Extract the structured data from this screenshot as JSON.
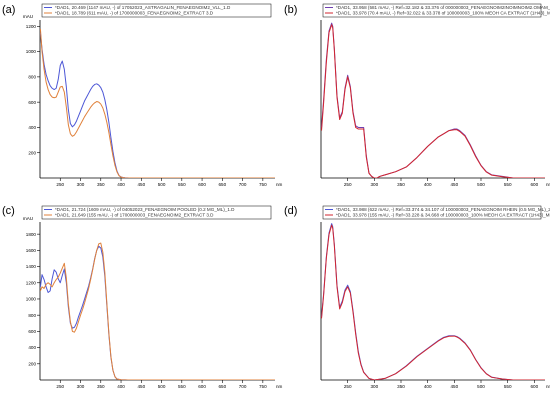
{
  "panel_labels": [
    "(a)",
    "(b)",
    "(c)",
    "(d)"
  ],
  "colors": {
    "blue": "#4d57d6",
    "orange": "#e0813b",
    "red": "#d2262f",
    "purple": "#6f3fb0"
  },
  "chart_data": [
    {
      "type": "line",
      "panel": "(a)",
      "ylabel": "mAU",
      "xlabel": "nm",
      "xlim": [
        200,
        780
      ],
      "ylim": [
        0,
        1250
      ],
      "xticks": [
        250,
        300,
        350,
        400,
        450,
        500,
        550,
        600,
        650,
        700,
        750
      ],
      "yticks": [
        200,
        400,
        600,
        800,
        1000,
        1200
      ],
      "legend": [
        "*DAD1, 20.469 (1147 mAU, -) of 17052023_ASTRAGALIN_FENAEGNOIM2_VLL_1.D",
        "*DAD1, 18.789 (611 mAU, -) of 1700000003_FENAEGNOIM2_EXTRACT 3.D"
      ],
      "series": [
        {
          "color": "blue",
          "x": [
            201,
            205,
            210,
            215,
            220,
            225,
            230,
            235,
            240,
            245,
            250,
            255,
            260,
            265,
            270,
            275,
            280,
            285,
            290,
            295,
            300,
            305,
            310,
            315,
            320,
            325,
            330,
            335,
            340,
            345,
            350,
            355,
            360,
            365,
            370,
            375,
            380,
            385,
            390,
            395,
            400,
            405,
            410,
            415,
            420,
            430,
            450,
            500,
            550,
            600,
            650,
            700,
            750,
            780
          ],
          "y": [
            1150,
            1020,
            900,
            820,
            770,
            730,
            710,
            700,
            710,
            780,
            890,
            925,
            860,
            720,
            540,
            430,
            405,
            420,
            450,
            490,
            530,
            570,
            610,
            640,
            670,
            700,
            725,
            740,
            745,
            735,
            715,
            680,
            620,
            540,
            440,
            320,
            210,
            120,
            55,
            20,
            8,
            4,
            2,
            1,
            0,
            0,
            0,
            0,
            0,
            0,
            0,
            0,
            0,
            0
          ]
        },
        {
          "color": "orange",
          "x": [
            201,
            205,
            210,
            215,
            220,
            225,
            230,
            235,
            240,
            245,
            250,
            255,
            260,
            265,
            270,
            275,
            280,
            285,
            290,
            295,
            300,
            305,
            310,
            315,
            320,
            325,
            330,
            335,
            340,
            345,
            350,
            355,
            360,
            365,
            370,
            375,
            380,
            385,
            390,
            395,
            400,
            405,
            410,
            415,
            420,
            430,
            450,
            500,
            550,
            600,
            650,
            700,
            750,
            780
          ],
          "y": [
            1180,
            1000,
            860,
            760,
            700,
            660,
            640,
            635,
            640,
            680,
            720,
            725,
            680,
            560,
            420,
            350,
            330,
            340,
            365,
            395,
            425,
            455,
            485,
            510,
            535,
            560,
            580,
            595,
            605,
            600,
            585,
            555,
            505,
            440,
            360,
            265,
            175,
            100,
            48,
            18,
            7,
            3,
            1,
            0,
            0,
            0,
            0,
            0,
            0,
            0,
            0,
            0,
            0,
            0
          ]
        }
      ]
    },
    {
      "type": "line",
      "panel": "(b)",
      "xlabel": "nm",
      "xlim": [
        200,
        620
      ],
      "ylim": [
        0,
        1
      ],
      "xticks": [
        250,
        300,
        350,
        400,
        450,
        500,
        550,
        600
      ],
      "yticks": [],
      "legend": [
        "*DAD1, 33.958 (581 mAU, -) Ref=32.182 & 33.376 of 000000003_FENAEGNOIM2INOIMNOIM2.OMAM_ML",
        "*DAD1, 33.978 (70.4 mAU, -) Ref=32.022 & 33.378 of 100000003_100% MEOH CA EXTRACT (1H43)_ML"
      ],
      "series": [
        {
          "color": "purple",
          "x": [
            201,
            205,
            210,
            215,
            220,
            222,
            225,
            230,
            235,
            240,
            245,
            250,
            255,
            260,
            265,
            270,
            275,
            280,
            285,
            290,
            295,
            300,
            305,
            310,
            320,
            340,
            360,
            380,
            400,
            420,
            430,
            440,
            450,
            455,
            460,
            470,
            480,
            490,
            500,
            510,
            520,
            540,
            560,
            600,
            620
          ],
          "y": [
            0.32,
            0.5,
            0.75,
            0.93,
            0.98,
            0.96,
            0.82,
            0.52,
            0.38,
            0.42,
            0.57,
            0.65,
            0.58,
            0.42,
            0.33,
            0.32,
            0.32,
            0.32,
            0.14,
            0.03,
            0.01,
            0,
            0,
            0.01,
            0.02,
            0.04,
            0.07,
            0.13,
            0.2,
            0.26,
            0.28,
            0.3,
            0.31,
            0.31,
            0.3,
            0.27,
            0.21,
            0.14,
            0.08,
            0.04,
            0.02,
            0.01,
            0,
            0,
            0
          ]
        },
        {
          "color": "red",
          "x": [
            201,
            205,
            210,
            215,
            220,
            222,
            225,
            230,
            235,
            240,
            245,
            250,
            255,
            260,
            265,
            270,
            275,
            280,
            285,
            290,
            295,
            300,
            305,
            310,
            320,
            340,
            360,
            380,
            400,
            420,
            430,
            440,
            450,
            455,
            460,
            470,
            480,
            490,
            500,
            510,
            520,
            540,
            560,
            600,
            620
          ],
          "y": [
            0.3,
            0.48,
            0.73,
            0.92,
            0.97,
            0.95,
            0.81,
            0.51,
            0.37,
            0.41,
            0.56,
            0.64,
            0.57,
            0.41,
            0.32,
            0.31,
            0.31,
            0.31,
            0.13,
            0.03,
            0.01,
            0,
            0,
            0.01,
            0.02,
            0.04,
            0.07,
            0.13,
            0.2,
            0.26,
            0.28,
            0.3,
            0.305,
            0.305,
            0.295,
            0.265,
            0.205,
            0.135,
            0.078,
            0.038,
            0.018,
            0.008,
            0,
            0,
            0
          ]
        }
      ]
    },
    {
      "type": "line",
      "panel": "(c)",
      "ylabel": "mAU",
      "xlabel": "nm",
      "xlim": [
        200,
        780
      ],
      "ylim": [
        0,
        1950
      ],
      "xticks": [
        250,
        300,
        350,
        400,
        450,
        500,
        550,
        600,
        650,
        700,
        750
      ],
      "yticks": [
        200,
        400,
        600,
        800,
        1000,
        1200,
        1400,
        1600,
        1800
      ],
      "legend": [
        "*DAD1, 21.724 (1609 mAU, -) of 04052023_FENAEGNOIM POOLED (0.2 MG_ML)_1.D",
        "*DAD1, 21.649 (155 mAU, -) of 1700000003_FENAEGNOIM2_EXTRACT 3.D"
      ],
      "series": [
        {
          "color": "blue",
          "x": [
            201,
            205,
            210,
            215,
            220,
            225,
            230,
            235,
            240,
            245,
            250,
            255,
            260,
            265,
            270,
            275,
            280,
            285,
            290,
            295,
            300,
            305,
            310,
            315,
            320,
            325,
            330,
            335,
            340,
            345,
            350,
            355,
            360,
            365,
            370,
            375,
            380,
            385,
            390,
            400,
            410,
            420,
            450,
            500,
            550,
            600,
            650,
            700,
            750,
            780
          ],
          "y": [
            1150,
            1300,
            1240,
            1150,
            1080,
            1100,
            1250,
            1360,
            1330,
            1250,
            1200,
            1290,
            1370,
            1200,
            900,
            700,
            640,
            650,
            700,
            780,
            850,
            920,
            1000,
            1080,
            1160,
            1260,
            1370,
            1500,
            1600,
            1650,
            1630,
            1520,
            1280,
            920,
            560,
            280,
            120,
            40,
            12,
            3,
            1,
            0,
            0,
            0,
            0,
            0,
            0,
            0,
            0,
            0
          ]
        },
        {
          "color": "orange",
          "x": [
            201,
            205,
            210,
            215,
            220,
            225,
            230,
            235,
            240,
            245,
            250,
            255,
            260,
            265,
            270,
            275,
            280,
            285,
            290,
            295,
            300,
            305,
            310,
            315,
            320,
            325,
            330,
            335,
            340,
            345,
            350,
            355,
            360,
            365,
            370,
            375,
            380,
            385,
            390,
            400,
            410,
            420,
            450,
            500,
            550,
            600,
            650,
            700,
            750,
            780
          ],
          "y": [
            1100,
            1150,
            1130,
            1180,
            1200,
            1180,
            1150,
            1200,
            1240,
            1270,
            1320,
            1380,
            1440,
            1260,
            940,
            720,
            600,
            590,
            640,
            720,
            800,
            870,
            950,
            1040,
            1130,
            1240,
            1360,
            1490,
            1600,
            1680,
            1690,
            1580,
            1330,
            950,
            580,
            290,
            120,
            40,
            12,
            3,
            1,
            0,
            0,
            0,
            0,
            0,
            0,
            0,
            0,
            0
          ]
        }
      ]
    },
    {
      "type": "line",
      "panel": "(d)",
      "xlabel": "nm",
      "xlim": [
        200,
        620
      ],
      "ylim": [
        0,
        1
      ],
      "xticks": [
        250,
        300,
        350,
        400,
        450,
        500,
        550,
        600
      ],
      "yticks": [],
      "legend": [
        "*DAD1, 33.988 (622 mAU, -) Ref=33.374 & 34.107 of 100000003_FENAEGNOIM RHEIN (0.5 MG_ML)_2.D",
        "*DAD1, 33.978 (155 mAU, -) Ref=33.228 & 34.668 of 100000003_100% MEOH CA EXTRACT (1H43)_ML"
      ],
      "series": [
        {
          "color": "blue",
          "x": [
            201,
            205,
            210,
            215,
            220,
            222,
            225,
            230,
            235,
            240,
            245,
            250,
            255,
            260,
            265,
            270,
            275,
            280,
            290,
            300,
            320,
            340,
            360,
            380,
            400,
            420,
            430,
            440,
            450,
            455,
            460,
            470,
            480,
            490,
            500,
            510,
            520,
            540,
            560,
            600,
            620
          ],
          "y": [
            0.4,
            0.55,
            0.78,
            0.93,
            0.99,
            0.97,
            0.86,
            0.6,
            0.46,
            0.5,
            0.57,
            0.6,
            0.56,
            0.44,
            0.3,
            0.18,
            0.1,
            0.05,
            0.01,
            0,
            0.01,
            0.04,
            0.09,
            0.15,
            0.2,
            0.25,
            0.27,
            0.28,
            0.28,
            0.275,
            0.265,
            0.235,
            0.19,
            0.13,
            0.078,
            0.04,
            0.018,
            0.006,
            0,
            0,
            0
          ]
        },
        {
          "color": "red",
          "x": [
            201,
            205,
            210,
            215,
            220,
            222,
            225,
            230,
            235,
            240,
            245,
            250,
            255,
            260,
            265,
            270,
            275,
            280,
            290,
            300,
            320,
            340,
            360,
            380,
            400,
            420,
            430,
            440,
            450,
            455,
            460,
            470,
            480,
            490,
            500,
            510,
            520,
            540,
            560,
            600,
            620
          ],
          "y": [
            0.39,
            0.54,
            0.77,
            0.92,
            0.98,
            0.96,
            0.85,
            0.59,
            0.45,
            0.49,
            0.56,
            0.59,
            0.55,
            0.43,
            0.29,
            0.17,
            0.095,
            0.048,
            0.01,
            0,
            0.01,
            0.04,
            0.088,
            0.148,
            0.198,
            0.247,
            0.267,
            0.277,
            0.278,
            0.272,
            0.262,
            0.232,
            0.188,
            0.128,
            0.076,
            0.039,
            0.017,
            0.006,
            0,
            0,
            0
          ]
        }
      ]
    }
  ]
}
